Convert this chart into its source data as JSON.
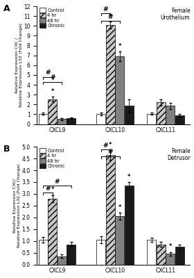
{
  "panel_A": {
    "title": "Female\nUrothelium",
    "ylabel": "Relative Expression CXC /\nRelative Expression L32 (Fold Change)",
    "ylim": [
      0,
      12
    ],
    "yticks": [
      0,
      1,
      2,
      3,
      4,
      5,
      6,
      7,
      8,
      9,
      10,
      11,
      12
    ],
    "groups": [
      "CXCL9",
      "CXCL10",
      "CXCL11"
    ],
    "data": {
      "Control": [
        1.05,
        1.05,
        1.05
      ],
      "4hr": [
        2.55,
        10.1,
        2.2
      ],
      "48hr": [
        0.5,
        6.9,
        1.85
      ],
      "Chronic": [
        0.6,
        1.9,
        0.9
      ]
    },
    "errors": {
      "Control": [
        0.1,
        0.15,
        0.12
      ],
      "4hr": [
        0.25,
        0.35,
        0.3
      ],
      "48hr": [
        0.1,
        0.5,
        0.3
      ],
      "Chronic": [
        0.1,
        0.65,
        0.15
      ]
    },
    "sig_stars": [
      {
        "group": 0,
        "bar": "4hr",
        "label": "*"
      },
      {
        "group": 1,
        "bar": "4hr",
        "label": "*"
      },
      {
        "group": 1,
        "bar": "48hr",
        "label": "*"
      }
    ],
    "brackets": [
      {
        "from_group": 0,
        "from_bar": "Control",
        "to_group": 0,
        "to_bar": "4hr",
        "y": 4.8,
        "label": "#"
      },
      {
        "from_group": 0,
        "from_bar": "Control",
        "to_group": 0,
        "to_bar": "48hr",
        "y": 4.3,
        "label": "#"
      },
      {
        "from_group": 1,
        "from_bar": "Control",
        "to_group": 1,
        "to_bar": "4hr",
        "y": 11.3,
        "label": "#"
      },
      {
        "from_group": 1,
        "from_bar": "Control",
        "to_group": 1,
        "to_bar": "48hr",
        "y": 10.5,
        "label": "#"
      }
    ]
  },
  "panel_B": {
    "title": "Female\nDetrusor",
    "ylabel": "Relative Expression CXC/\nRelative Expression L32 (Fold Change)",
    "ylim": [
      0,
      5
    ],
    "yticks": [
      0,
      0.5,
      1.0,
      1.5,
      2.0,
      2.5,
      3.0,
      3.5,
      4.0,
      4.5,
      5.0
    ],
    "groups": [
      "CXCL9",
      "CXCL10",
      "CXCL11"
    ],
    "data": {
      "Control": [
        1.05,
        1.05,
        1.05
      ],
      "4hr": [
        2.8,
        4.65,
        0.85
      ],
      "48hr": [
        0.35,
        2.05,
        0.45
      ],
      "Chronic": [
        0.85,
        3.35,
        0.75
      ]
    },
    "errors": {
      "Control": [
        0.12,
        0.15,
        0.1
      ],
      "4hr": [
        0.15,
        0.2,
        0.1
      ],
      "48hr": [
        0.07,
        0.15,
        0.08
      ],
      "Chronic": [
        0.1,
        0.15,
        0.1
      ]
    },
    "sig_stars": [
      {
        "group": 0,
        "bar": "4hr",
        "label": "*"
      },
      {
        "group": 1,
        "bar": "4hr",
        "label": "*"
      },
      {
        "group": 1,
        "bar": "48hr",
        "label": "*"
      },
      {
        "group": 1,
        "bar": "Chronic",
        "label": "*"
      },
      {
        "group": 2,
        "bar": "48hr",
        "label": "*"
      }
    ],
    "brackets": [
      {
        "from_group": 0,
        "from_bar": "Control",
        "to_group": 0,
        "to_bar": "Chronic",
        "y": 3.35,
        "label": "#"
      },
      {
        "from_group": 0,
        "from_bar": "Control",
        "to_group": 0,
        "to_bar": "4hr",
        "y": 3.05,
        "label": "#"
      },
      {
        "from_group": 1,
        "from_bar": "Control",
        "to_group": 1,
        "to_bar": "4hr",
        "y": 4.88,
        "label": "#"
      },
      {
        "from_group": 1,
        "from_bar": "Control",
        "to_group": 1,
        "to_bar": "48hr",
        "y": 4.6,
        "label": "#"
      }
    ]
  },
  "colors": {
    "Control": "#ffffff",
    "4hr": "#c8c8c8",
    "48hr": "#808080",
    "Chronic": "#1a1a1a"
  },
  "hatch": {
    "Control": "",
    "4hr": "////",
    "48hr": "",
    "Chronic": ""
  },
  "legend_labels": [
    "Control",
    "4 hr",
    "48 hr",
    "Chronic"
  ],
  "bar_width": 0.13
}
